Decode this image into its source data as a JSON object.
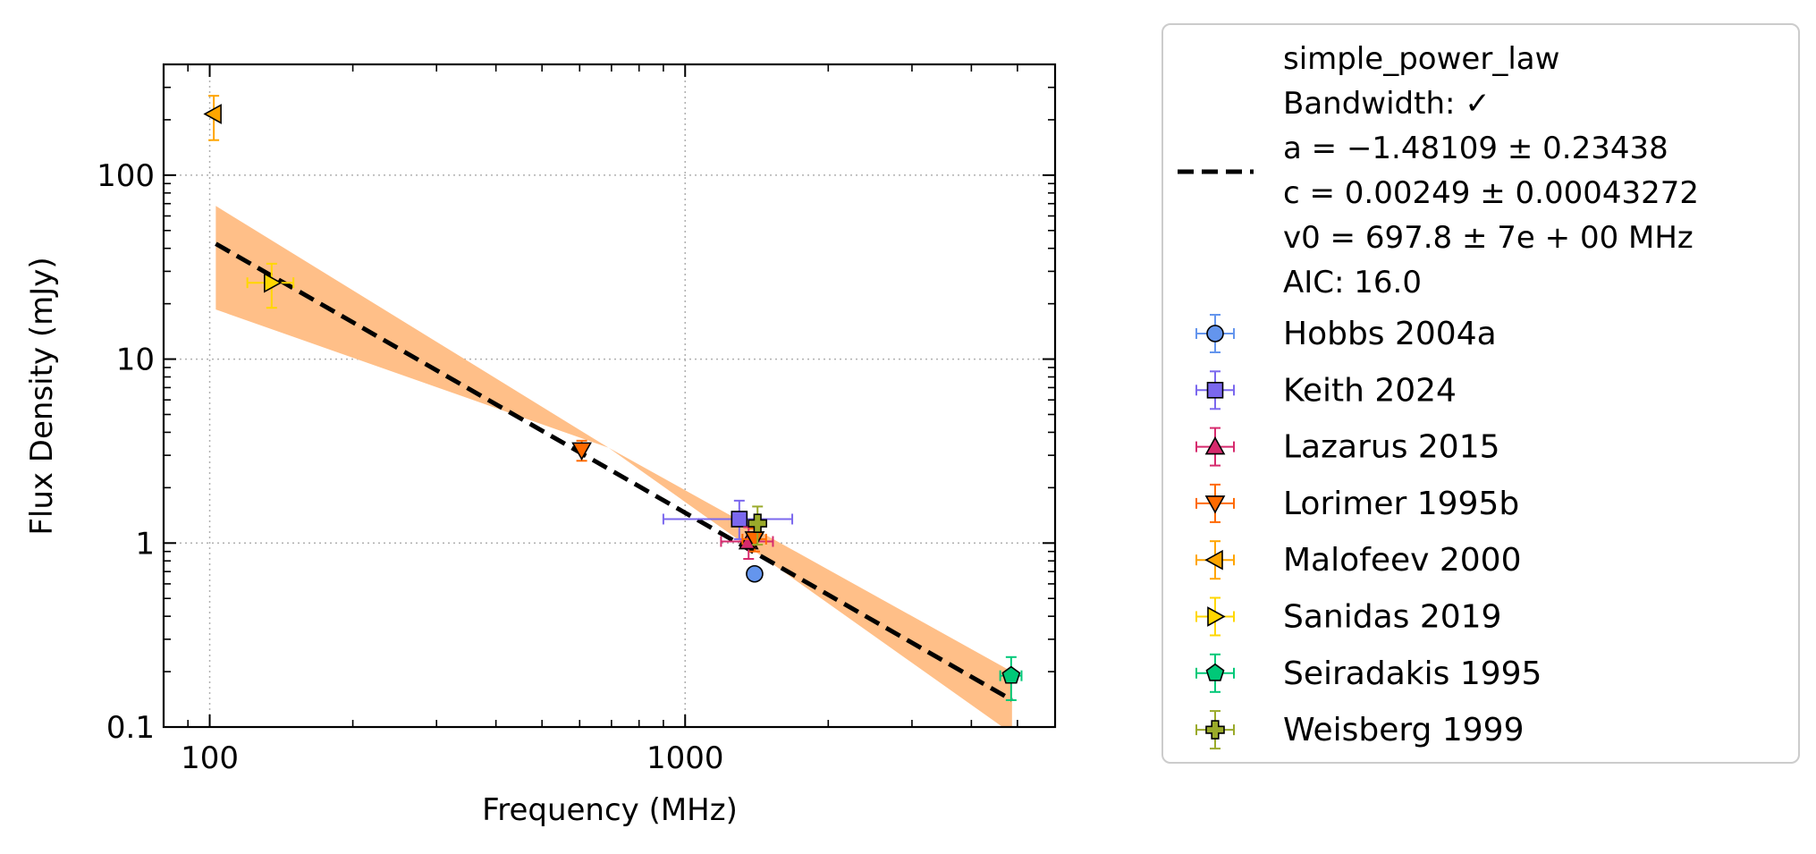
{
  "chart_data": {
    "type": "scatter",
    "xlabel": "Frequency (MHz)",
    "ylabel": "Flux Density (mJy)",
    "xscale": "log",
    "yscale": "log",
    "xlim": [
      80,
      6000
    ],
    "ylim": [
      0.1,
      400
    ],
    "x_ticks": [
      {
        "value": 100,
        "label": "100"
      },
      {
        "value": 1000,
        "label": "1000"
      }
    ],
    "y_ticks": [
      {
        "value": 0.1,
        "label": "0.1"
      },
      {
        "value": 1,
        "label": "1"
      },
      {
        "value": 10,
        "label": "10"
      },
      {
        "value": 100,
        "label": "100"
      }
    ],
    "grid": true,
    "legend_position": "outside-right",
    "fit": {
      "label_lines": [
        "simple_power_law",
        "Bandwidth: ✓",
        "a = −1.48109 ± 0.23438",
        "c = 0.00249 ± 0.00043272",
        "v0 = 697.8 ± 7e + 00 MHz",
        "AIC: 16.0"
      ],
      "a": -1.48109,
      "c": 0.00249,
      "v0": 697.8,
      "x_range": [
        103,
        4870
      ],
      "band_upper": [
        [
          103,
          68
        ],
        [
          690,
          3.3
        ],
        [
          4870,
          0.2
        ]
      ],
      "band_lower": [
        [
          103,
          18.6
        ],
        [
          690,
          3.3
        ],
        [
          4870,
          0.092
        ]
      ],
      "line_color": "#000000",
      "band_color": "#ffbf88"
    },
    "series": [
      {
        "name": "Hobbs 2004a",
        "marker": "circle",
        "color": "#6495ed",
        "points": [
          {
            "x": 1400,
            "y": 0.68,
            "xerr": 0,
            "yerr": [
              0,
              0
            ]
          }
        ]
      },
      {
        "name": "Keith 2024",
        "marker": "square",
        "color": "#7b68ee",
        "points": [
          {
            "x": 1300,
            "y": 1.35,
            "xerr": [
              400,
              380
            ],
            "yerr": [
              0.3,
              0.35
            ]
          }
        ]
      },
      {
        "name": "Lazarus 2015",
        "marker": "triangle-up",
        "color": "#d62a6d",
        "points": [
          {
            "x": 1360,
            "y": 1.02,
            "xerr": [
              170,
              170
            ],
            "yerr": [
              0.2,
              0.2
            ]
          }
        ]
      },
      {
        "name": "Lorimer 1995b",
        "marker": "triangle-down",
        "color": "#ff6a00",
        "points": [
          {
            "x": 606,
            "y": 3.2,
            "xerr": [
              0,
              0
            ],
            "yerr": [
              0.4,
              0.4
            ]
          },
          {
            "x": 1400,
            "y": 1.05,
            "xerr": [
              80,
              80
            ],
            "yerr": [
              0.15,
              0.15
            ]
          }
        ]
      },
      {
        "name": "Malofeev 2000",
        "marker": "triangle-left",
        "color": "#ffa500",
        "points": [
          {
            "x": 102,
            "y": 215,
            "xerr": [
              0,
              0
            ],
            "yerr": [
              60,
              55
            ]
          }
        ]
      },
      {
        "name": "Sanidas 2019",
        "marker": "triangle-right",
        "color": "#ffd700",
        "points": [
          {
            "x": 135,
            "y": 26,
            "xerr": [
              15,
              15
            ],
            "yerr": [
              7,
              7
            ]
          }
        ]
      },
      {
        "name": "Seiradakis 1995",
        "marker": "pentagon",
        "color": "#00c878",
        "points": [
          {
            "x": 4850,
            "y": 0.19,
            "xerr": [
              250,
              250
            ],
            "yerr": [
              0.05,
              0.05
            ]
          }
        ]
      },
      {
        "name": "Weisberg 1999",
        "marker": "plus",
        "color": "#9aaa2a",
        "points": [
          {
            "x": 1420,
            "y": 1.28,
            "xerr": [
              0,
              0
            ],
            "yerr": [
              0.3,
              0.3
            ]
          }
        ]
      }
    ]
  }
}
